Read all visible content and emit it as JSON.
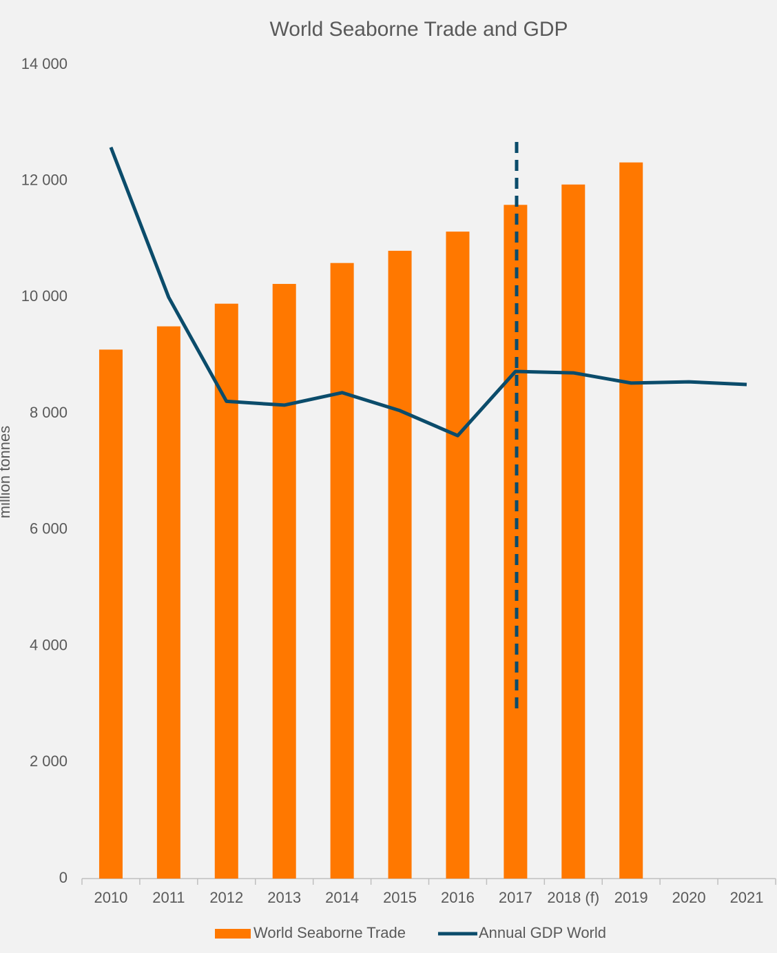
{
  "chart_data": {
    "type": "bar",
    "title": "World Seaborne Trade and GDP",
    "y_label": "million tonnes",
    "categories": [
      "2010",
      "2011",
      "2012",
      "2013",
      "2014",
      "2015",
      "2016",
      "2017",
      "2018 (f)",
      "2019",
      "2020",
      "2021"
    ],
    "series": [
      {
        "name": "World Seaborne Trade",
        "type": "bar",
        "color": "#ff7800",
        "values": [
          9100,
          9500,
          9890,
          10230,
          10590,
          10800,
          11130,
          11590,
          11940,
          12320,
          null,
          null
        ]
      },
      {
        "name": "Annual GDP World",
        "type": "line",
        "color": "#0b4c6b",
        "values": [
          12580,
          10000,
          8210,
          8145,
          8360,
          8050,
          7620,
          8725,
          8700,
          8525,
          8545,
          8500
        ]
      }
    ],
    "ylim": [
      0,
      14000
    ],
    "yticks": [
      0,
      {
        "value": 2000,
        "label": "2 000"
      },
      {
        "value": 4000,
        "label": "4 000"
      },
      {
        "value": 6000,
        "label": "6 000"
      },
      {
        "value": 8000,
        "label": "8 000"
      },
      {
        "value": 10000,
        "label": "10 000"
      },
      {
        "value": 12000,
        "label": "12 000"
      },
      {
        "value": 14000,
        "label": "14 000"
      }
    ],
    "grid": false,
    "legend": "bottom"
  }
}
